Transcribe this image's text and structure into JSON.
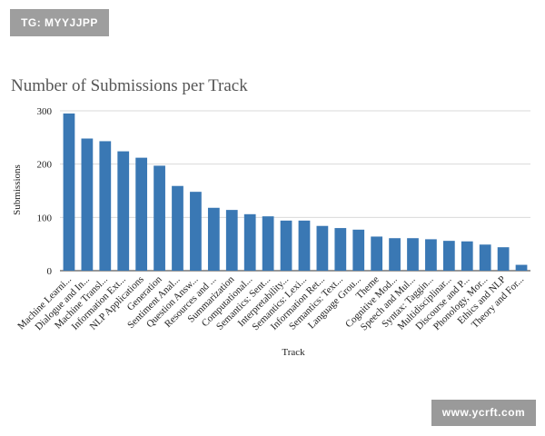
{
  "watermarks": {
    "top_left": "TG: MYYJJPP",
    "bottom_right": "www.ycrft.com"
  },
  "chart_data": {
    "type": "bar",
    "title": "Number of Submissions per Track",
    "xlabel": "Track",
    "ylabel": "Submissions",
    "ylim": [
      0,
      300
    ],
    "yticks": [
      0,
      100,
      200,
      300
    ],
    "grid": true,
    "bar_color": "#3a78b4",
    "categories": [
      "Machine Learni...",
      "Dialogue and In...",
      "Machine Transl...",
      "Information Ext...",
      "NLP Applications",
      "Generation",
      "Sentiment Anal...",
      "Question Answ...",
      "Resources and ...",
      "Summarization",
      "Computational...",
      "Semantics: Sent...",
      "Interpretability...",
      "Semantics: Lexi...",
      "Information Ret...",
      "Semantics: Text...",
      "Language Grou...",
      "Theme",
      "Cognitive Mod...",
      "Speech and Mul...",
      "Syntax: Taggin...",
      "Multidisciplinar...",
      "Discourse and P...",
      "Phonology, Mor...",
      "Ethics and NLP",
      "Theory and For..."
    ],
    "values": [
      295,
      248,
      243,
      224,
      212,
      197,
      159,
      148,
      118,
      114,
      106,
      102,
      94,
      94,
      84,
      80,
      77,
      64,
      61,
      61,
      59,
      56,
      55,
      49,
      44,
      11
    ]
  }
}
